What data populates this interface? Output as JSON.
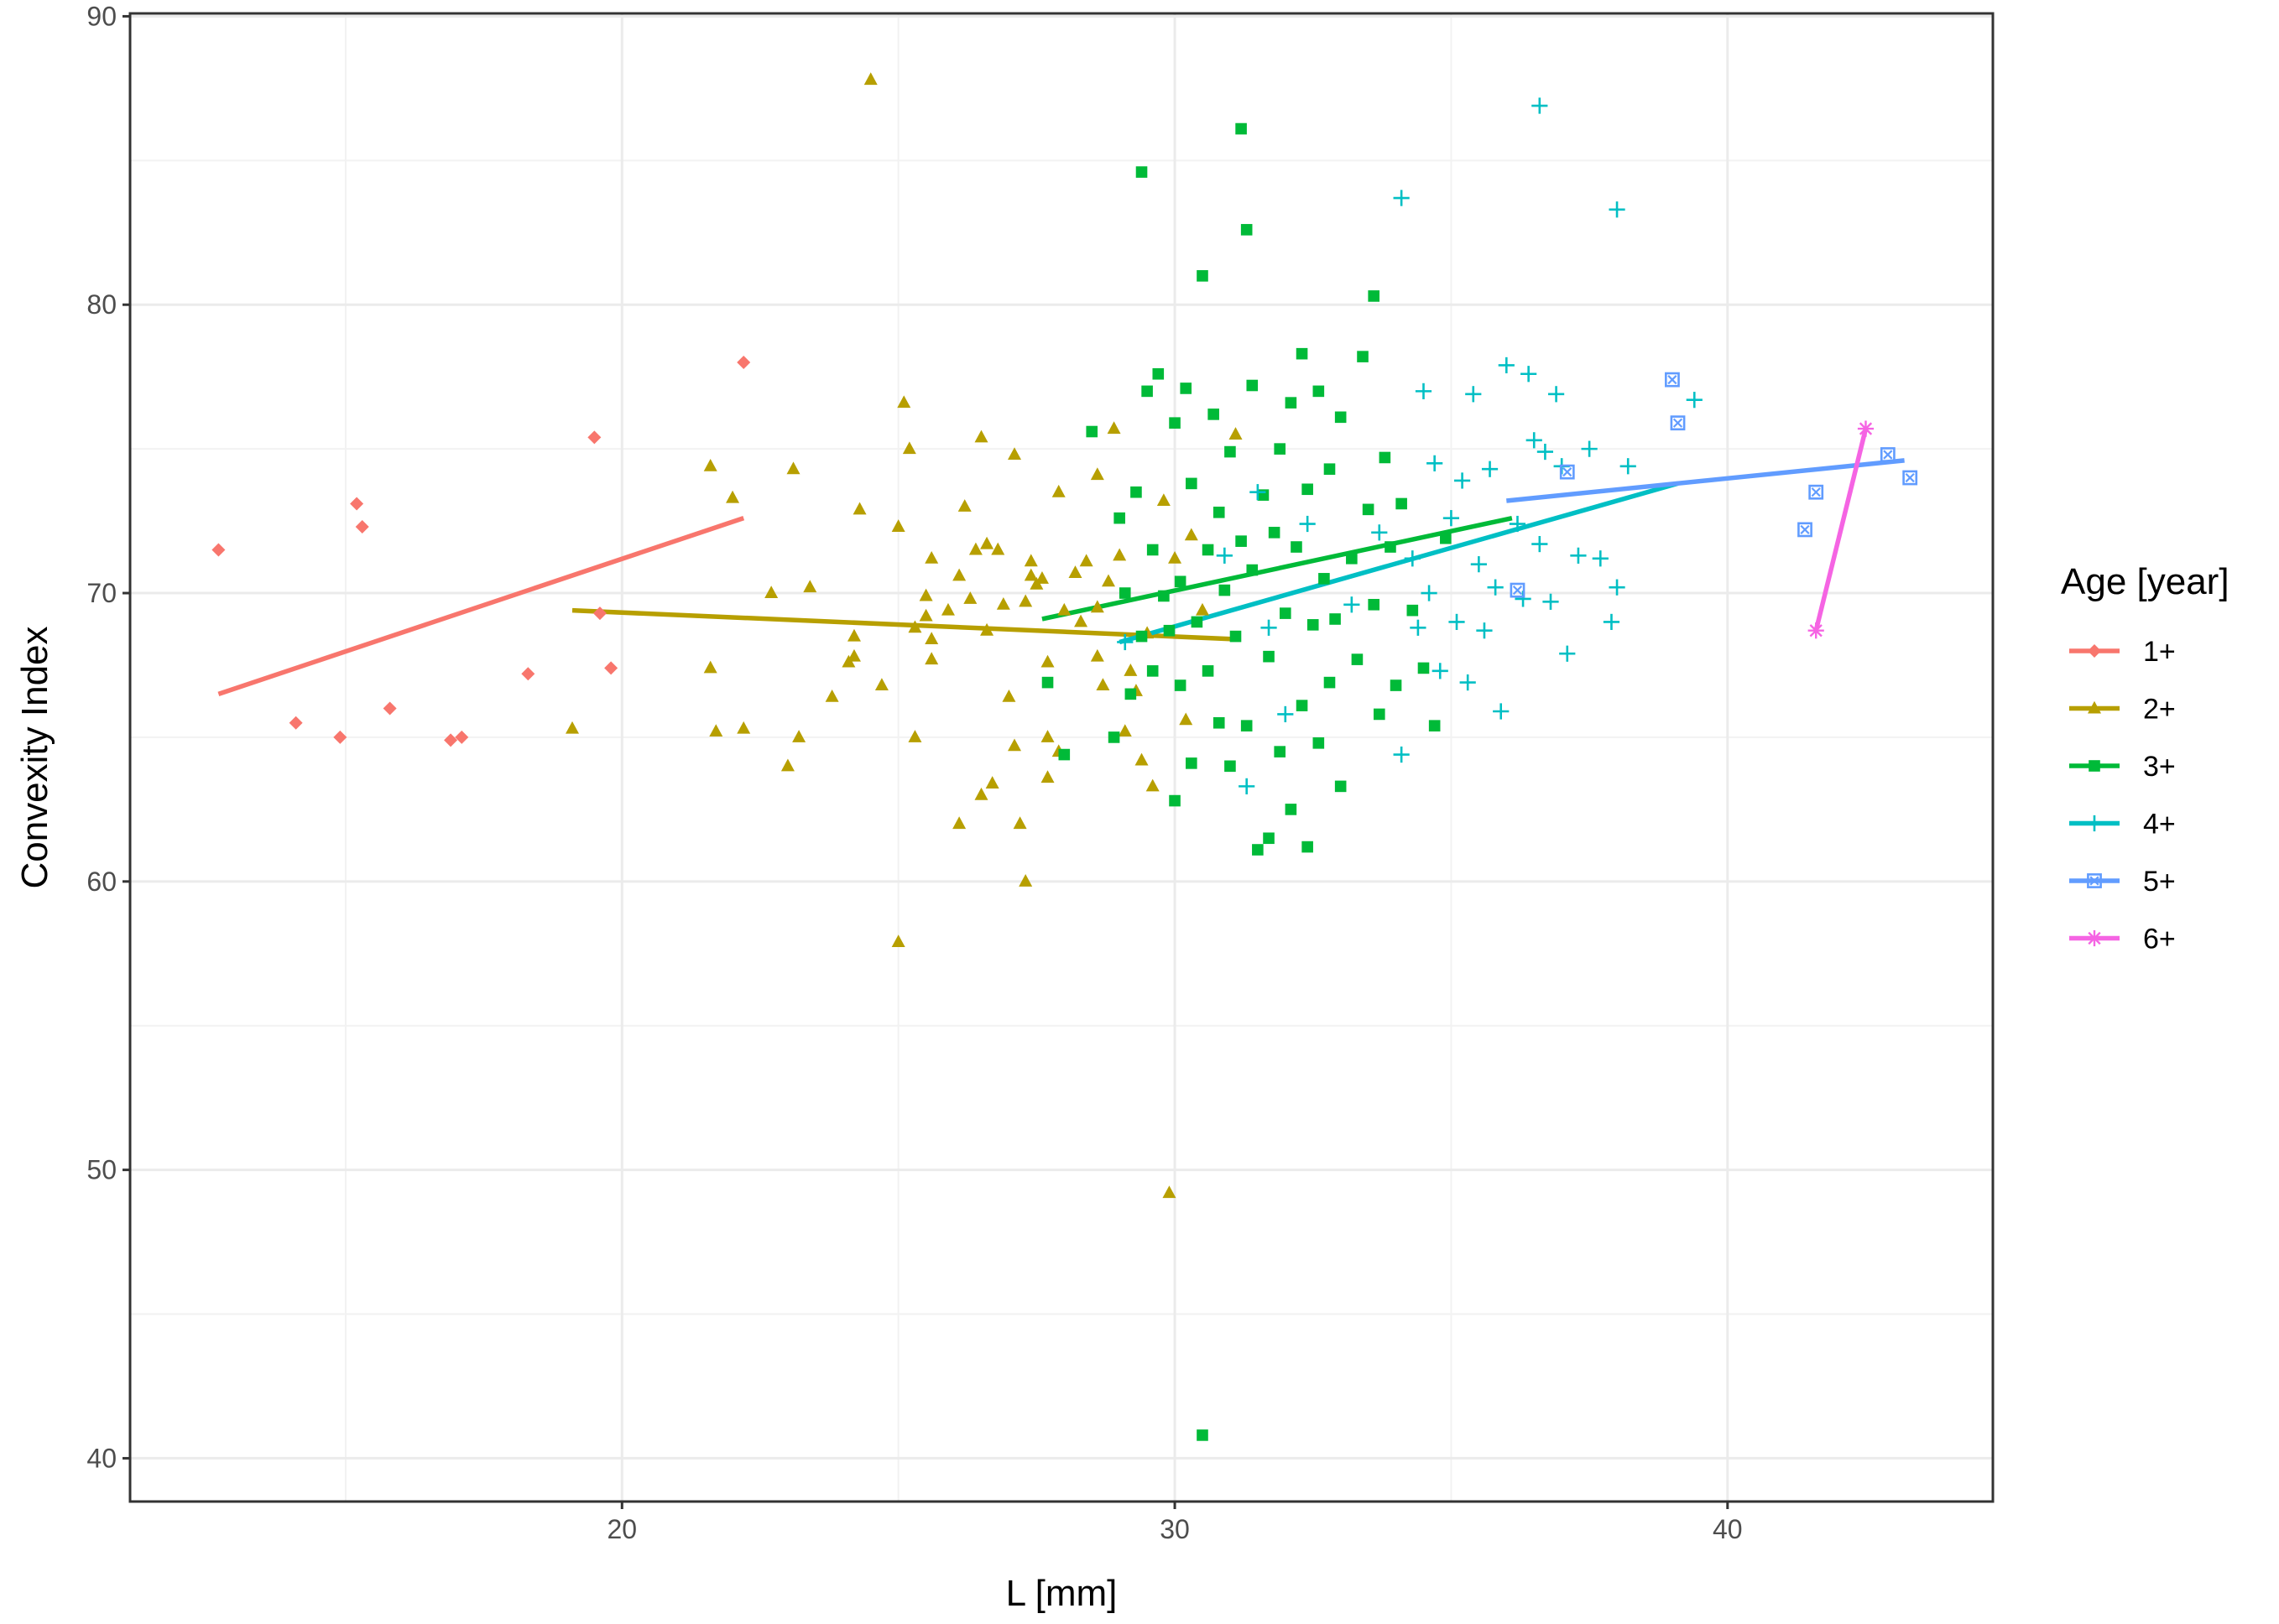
{
  "chart_data": {
    "type": "scatter",
    "xlabel": "L [mm]",
    "ylabel": "Convexity Index",
    "xlim": [
      11.1,
      44.8
    ],
    "ylim": [
      38.5,
      90.1
    ],
    "x_ticks": [
      20,
      30,
      40
    ],
    "x_tick_labels": [
      "20",
      "30",
      "40"
    ],
    "y_ticks": [
      40,
      50,
      60,
      70,
      80,
      90
    ],
    "y_tick_labels": [
      "40",
      "50",
      "60",
      "70",
      "80",
      "90"
    ],
    "grid": true,
    "legend": {
      "title": "Age [year]",
      "placement": "right"
    },
    "series": [
      {
        "name": "1+",
        "color": "#F8766D",
        "marker": "diamond",
        "points": [
          [
            12.7,
            71.5
          ],
          [
            14.1,
            65.5
          ],
          [
            14.9,
            65.0
          ],
          [
            15.2,
            73.1
          ],
          [
            15.3,
            72.3
          ],
          [
            15.8,
            66.0
          ],
          [
            16.9,
            64.9
          ],
          [
            17.1,
            65.0
          ],
          [
            18.3,
            67.2
          ],
          [
            19.5,
            75.4
          ],
          [
            19.6,
            69.3
          ],
          [
            19.8,
            67.4
          ],
          [
            22.2,
            78.0
          ]
        ],
        "fit": [
          [
            12.7,
            66.5
          ],
          [
            22.2,
            72.6
          ]
        ]
      },
      {
        "name": "2+",
        "color": "#B79F00",
        "marker": "triangle",
        "points": [
          [
            19.1,
            65.3
          ],
          [
            21.6,
            74.4
          ],
          [
            21.6,
            67.4
          ],
          [
            21.7,
            65.2
          ],
          [
            22.0,
            73.3
          ],
          [
            22.2,
            65.3
          ],
          [
            22.7,
            70.0
          ],
          [
            23.0,
            64.0
          ],
          [
            23.1,
            74.3
          ],
          [
            23.2,
            65.0
          ],
          [
            23.4,
            70.2
          ],
          [
            23.8,
            66.4
          ],
          [
            24.1,
            67.6
          ],
          [
            24.2,
            68.5
          ],
          [
            24.2,
            67.8
          ],
          [
            24.3,
            72.9
          ],
          [
            24.5,
            87.8
          ],
          [
            24.7,
            66.8
          ],
          [
            25.0,
            57.9
          ],
          [
            25.0,
            72.3
          ],
          [
            25.1,
            76.6
          ],
          [
            25.2,
            75.0
          ],
          [
            25.3,
            65.0
          ],
          [
            25.3,
            68.8
          ],
          [
            25.5,
            69.9
          ],
          [
            25.5,
            69.2
          ],
          [
            25.6,
            71.2
          ],
          [
            25.6,
            68.4
          ],
          [
            25.6,
            67.7
          ],
          [
            25.9,
            69.4
          ],
          [
            26.1,
            70.6
          ],
          [
            26.1,
            62.0
          ],
          [
            26.2,
            73.0
          ],
          [
            26.3,
            69.8
          ],
          [
            26.4,
            71.5
          ],
          [
            26.5,
            63.0
          ],
          [
            26.5,
            75.4
          ],
          [
            26.6,
            71.7
          ],
          [
            26.6,
            68.7
          ],
          [
            26.7,
            63.4
          ],
          [
            26.8,
            71.5
          ],
          [
            26.9,
            69.6
          ],
          [
            27.0,
            66.4
          ],
          [
            27.1,
            64.7
          ],
          [
            27.1,
            74.8
          ],
          [
            27.2,
            62.0
          ],
          [
            27.3,
            69.7
          ],
          [
            27.3,
            60.0
          ],
          [
            27.4,
            70.6
          ],
          [
            27.4,
            71.1
          ],
          [
            27.5,
            70.3
          ],
          [
            27.6,
            70.5
          ],
          [
            27.7,
            63.6
          ],
          [
            27.7,
            65.0
          ],
          [
            27.7,
            67.6
          ],
          [
            27.9,
            73.5
          ],
          [
            27.9,
            64.5
          ],
          [
            28.0,
            69.4
          ],
          [
            28.2,
            70.7
          ],
          [
            28.3,
            69.0
          ],
          [
            28.4,
            71.1
          ],
          [
            28.6,
            74.1
          ],
          [
            28.6,
            69.5
          ],
          [
            28.6,
            67.8
          ],
          [
            28.7,
            66.8
          ],
          [
            28.8,
            70.4
          ],
          [
            28.9,
            75.7
          ],
          [
            29.0,
            71.3
          ],
          [
            29.1,
            65.2
          ],
          [
            29.2,
            67.3
          ],
          [
            29.3,
            66.6
          ],
          [
            29.4,
            64.2
          ],
          [
            29.5,
            68.6
          ],
          [
            29.6,
            63.3
          ],
          [
            29.8,
            73.2
          ],
          [
            29.9,
            49.2
          ],
          [
            30.0,
            71.2
          ],
          [
            30.2,
            65.6
          ],
          [
            30.3,
            72.0
          ],
          [
            30.5,
            69.4
          ],
          [
            31.1,
            75.5
          ]
        ],
        "fit": [
          [
            19.1,
            69.4
          ],
          [
            31.1,
            68.4
          ]
        ]
      },
      {
        "name": "3+",
        "color": "#00BA38",
        "marker": "square",
        "points": [
          [
            27.7,
            66.9
          ],
          [
            28.0,
            64.4
          ],
          [
            28.5,
            75.6
          ],
          [
            28.9,
            65.0
          ],
          [
            29.0,
            72.6
          ],
          [
            29.1,
            70.0
          ],
          [
            29.2,
            66.5
          ],
          [
            29.3,
            73.5
          ],
          [
            29.4,
            68.5
          ],
          [
            29.4,
            84.6
          ],
          [
            29.5,
            77.0
          ],
          [
            29.6,
            71.5
          ],
          [
            29.6,
            67.3
          ],
          [
            29.7,
            77.6
          ],
          [
            29.8,
            69.9
          ],
          [
            29.9,
            68.7
          ],
          [
            30.0,
            62.8
          ],
          [
            30.0,
            75.9
          ],
          [
            30.1,
            66.8
          ],
          [
            30.1,
            70.4
          ],
          [
            30.2,
            77.1
          ],
          [
            30.3,
            64.1
          ],
          [
            30.3,
            73.8
          ],
          [
            30.4,
            69.0
          ],
          [
            30.5,
            40.8
          ],
          [
            30.5,
            81.0
          ],
          [
            30.6,
            71.5
          ],
          [
            30.6,
            67.3
          ],
          [
            30.7,
            76.2
          ],
          [
            30.8,
            65.5
          ],
          [
            30.8,
            72.8
          ],
          [
            30.9,
            70.1
          ],
          [
            31.0,
            64.0
          ],
          [
            31.0,
            74.9
          ],
          [
            31.1,
            68.5
          ],
          [
            31.2,
            86.1
          ],
          [
            31.2,
            71.8
          ],
          [
            31.3,
            65.4
          ],
          [
            31.3,
            82.6
          ],
          [
            31.4,
            70.8
          ],
          [
            31.4,
            77.2
          ],
          [
            31.5,
            61.1
          ],
          [
            31.6,
            73.4
          ],
          [
            31.7,
            67.8
          ],
          [
            31.7,
            61.5
          ],
          [
            31.8,
            72.1
          ],
          [
            31.9,
            64.5
          ],
          [
            31.9,
            75.0
          ],
          [
            32.0,
            69.3
          ],
          [
            32.1,
            62.5
          ],
          [
            32.1,
            76.6
          ],
          [
            32.2,
            71.6
          ],
          [
            32.3,
            66.1
          ],
          [
            32.3,
            78.3
          ],
          [
            32.4,
            61.2
          ],
          [
            32.4,
            73.6
          ],
          [
            32.5,
            68.9
          ],
          [
            32.6,
            64.8
          ],
          [
            32.6,
            77.0
          ],
          [
            32.7,
            70.5
          ],
          [
            32.8,
            66.9
          ],
          [
            32.8,
            74.3
          ],
          [
            32.9,
            69.1
          ],
          [
            33.0,
            63.3
          ],
          [
            33.0,
            76.1
          ],
          [
            33.2,
            71.2
          ],
          [
            33.3,
            67.7
          ],
          [
            33.4,
            78.2
          ],
          [
            33.5,
            72.9
          ],
          [
            33.6,
            80.3
          ],
          [
            33.6,
            69.6
          ],
          [
            33.7,
            65.8
          ],
          [
            33.8,
            74.7
          ],
          [
            33.9,
            71.6
          ],
          [
            34.0,
            66.8
          ],
          [
            34.1,
            73.1
          ],
          [
            34.3,
            69.4
          ],
          [
            34.5,
            67.4
          ],
          [
            34.7,
            65.4
          ],
          [
            34.9,
            71.9
          ]
        ],
        "fit": [
          [
            27.6,
            69.1
          ],
          [
            36.1,
            72.6
          ]
        ]
      },
      {
        "name": "4+",
        "color": "#00BFC4",
        "marker": "plus",
        "points": [
          [
            29.1,
            68.3
          ],
          [
            30.9,
            71.3
          ],
          [
            31.3,
            63.3
          ],
          [
            31.5,
            73.5
          ],
          [
            31.7,
            68.8
          ],
          [
            32.0,
            65.8
          ],
          [
            32.4,
            72.4
          ],
          [
            33.2,
            69.6
          ],
          [
            33.7,
            72.1
          ],
          [
            34.1,
            83.7
          ],
          [
            34.1,
            64.4
          ],
          [
            34.3,
            71.2
          ],
          [
            34.4,
            68.8
          ],
          [
            34.5,
            77.0
          ],
          [
            34.6,
            70.0
          ],
          [
            34.7,
            74.5
          ],
          [
            34.8,
            67.3
          ],
          [
            35.0,
            72.6
          ],
          [
            35.1,
            69.0
          ],
          [
            35.2,
            73.9
          ],
          [
            35.3,
            66.9
          ],
          [
            35.4,
            76.9
          ],
          [
            35.5,
            71.0
          ],
          [
            35.6,
            68.7
          ],
          [
            35.7,
            74.3
          ],
          [
            35.8,
            70.2
          ],
          [
            35.9,
            65.9
          ],
          [
            36.0,
            77.9
          ],
          [
            36.2,
            72.4
          ],
          [
            36.3,
            69.8
          ],
          [
            36.4,
            77.6
          ],
          [
            36.5,
            75.3
          ],
          [
            36.6,
            86.9
          ],
          [
            36.6,
            71.7
          ],
          [
            36.7,
            74.9
          ],
          [
            36.8,
            69.7
          ],
          [
            36.9,
            76.9
          ],
          [
            37.0,
            74.4
          ],
          [
            37.1,
            67.9
          ],
          [
            37.3,
            71.3
          ],
          [
            37.5,
            75.0
          ],
          [
            37.7,
            71.2
          ],
          [
            37.9,
            69.0
          ],
          [
            38.0,
            70.2
          ],
          [
            38.0,
            83.3
          ],
          [
            38.2,
            74.4
          ],
          [
            39.4,
            76.7
          ]
        ],
        "fit": [
          [
            29.0,
            68.3
          ],
          [
            39.1,
            73.8
          ]
        ]
      },
      {
        "name": "5+",
        "color": "#619CFF",
        "marker": "boxed",
        "points": [
          [
            36.2,
            70.1
          ],
          [
            37.1,
            74.2
          ],
          [
            39.0,
            77.4
          ],
          [
            39.1,
            75.9
          ],
          [
            41.4,
            72.2
          ],
          [
            41.6,
            73.5
          ],
          [
            42.9,
            74.8
          ],
          [
            43.3,
            74.0
          ]
        ],
        "fit": [
          [
            36.0,
            73.2
          ],
          [
            43.2,
            74.6
          ]
        ]
      },
      {
        "name": "6+",
        "color": "#F564E3",
        "marker": "star",
        "points": [
          [
            41.6,
            68.7
          ],
          [
            42.5,
            75.7
          ]
        ],
        "fit": [
          [
            41.6,
            68.7
          ],
          [
            42.5,
            75.7
          ]
        ]
      }
    ]
  }
}
